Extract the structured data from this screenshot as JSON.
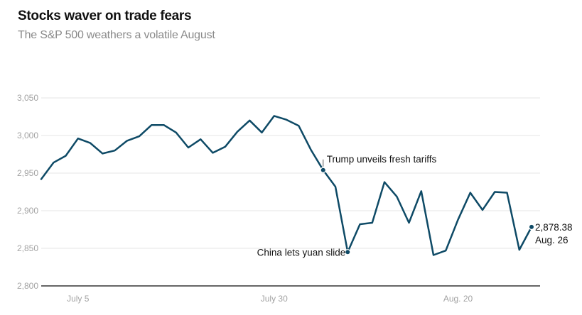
{
  "header": {
    "title": "Stocks waver on trade fears",
    "subtitle": "The S&P 500 weathers a volatile August"
  },
  "colors": {
    "line": "#0e4a66",
    "grid": "#e6e6e6",
    "tick": "#a3a3a3"
  },
  "chart_data": {
    "type": "line",
    "title": "Stocks waver on trade fears",
    "subtitle": "The S&P 500 weathers a volatile August",
    "xlabel": "",
    "ylabel": "",
    "ylim": [
      2800,
      3050
    ],
    "yticks": [
      2800,
      2850,
      2900,
      2950,
      3000,
      3050
    ],
    "ytick_labels": [
      "2,800",
      "2,850",
      "2,900",
      "2,950",
      "3,000",
      "3,050"
    ],
    "xtick_labels": [
      {
        "label": "July 5",
        "index": 3
      },
      {
        "label": "July 30",
        "index": 19
      },
      {
        "label": "Aug. 20",
        "index": 34
      }
    ],
    "grid": true,
    "series": [
      {
        "values": [
          2942,
          2964,
          2973,
          2996,
          2990,
          2976,
          2980,
          2993,
          2999,
          3014,
          3014,
          3004,
          2984,
          2995,
          2977,
          2985,
          3005,
          3020,
          3004,
          3026,
          3021,
          3013,
          2981,
          2954,
          2932,
          2845,
          2882,
          2884,
          2938,
          2919,
          2884,
          2926,
          2841,
          2847,
          2888,
          2924,
          2901,
          2925,
          2924,
          2848,
          2878.38
        ]
      }
    ],
    "annotations": [
      {
        "text": "Trump unveils fresh tariffs",
        "index": 23
      },
      {
        "text": "China lets yuan slide",
        "index": 25
      },
      {
        "text": "2,878.38",
        "index": 40
      },
      {
        "text": "Aug. 26",
        "index": 40
      }
    ]
  }
}
